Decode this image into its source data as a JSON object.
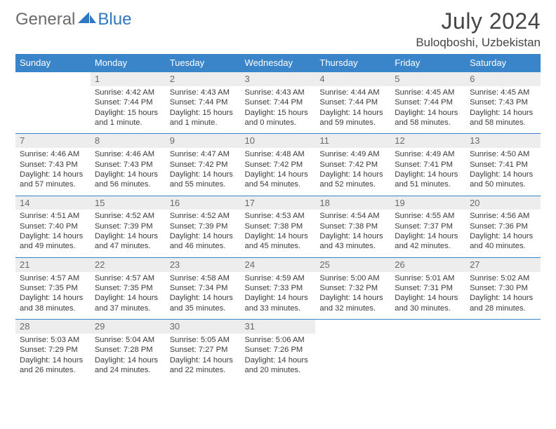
{
  "logo": {
    "general": "General",
    "blue": "Blue"
  },
  "title": "July 2024",
  "location": "Buloqboshi, Uzbekistan",
  "colors": {
    "header_bg": "#3a85c9",
    "header_fg": "#ffffff",
    "daynum_bg": "#ededed",
    "daynum_fg": "#6a6a6a",
    "rule": "#3a85c9",
    "logo_gray": "#6b6b6b",
    "logo_blue": "#2f78c1",
    "text": "#3b3b3b"
  },
  "dayNames": [
    "Sunday",
    "Monday",
    "Tuesday",
    "Wednesday",
    "Thursday",
    "Friday",
    "Saturday"
  ],
  "firstDayOfWeekIndex": 1,
  "daysInMonth": 31,
  "days": [
    {
      "n": 1,
      "sunrise": "4:42 AM",
      "sunset": "7:44 PM",
      "daylight": "15 hours and 1 minute."
    },
    {
      "n": 2,
      "sunrise": "4:43 AM",
      "sunset": "7:44 PM",
      "daylight": "15 hours and 1 minute."
    },
    {
      "n": 3,
      "sunrise": "4:43 AM",
      "sunset": "7:44 PM",
      "daylight": "15 hours and 0 minutes."
    },
    {
      "n": 4,
      "sunrise": "4:44 AM",
      "sunset": "7:44 PM",
      "daylight": "14 hours and 59 minutes."
    },
    {
      "n": 5,
      "sunrise": "4:45 AM",
      "sunset": "7:44 PM",
      "daylight": "14 hours and 58 minutes."
    },
    {
      "n": 6,
      "sunrise": "4:45 AM",
      "sunset": "7:43 PM",
      "daylight": "14 hours and 58 minutes."
    },
    {
      "n": 7,
      "sunrise": "4:46 AM",
      "sunset": "7:43 PM",
      "daylight": "14 hours and 57 minutes."
    },
    {
      "n": 8,
      "sunrise": "4:46 AM",
      "sunset": "7:43 PM",
      "daylight": "14 hours and 56 minutes."
    },
    {
      "n": 9,
      "sunrise": "4:47 AM",
      "sunset": "7:42 PM",
      "daylight": "14 hours and 55 minutes."
    },
    {
      "n": 10,
      "sunrise": "4:48 AM",
      "sunset": "7:42 PM",
      "daylight": "14 hours and 54 minutes."
    },
    {
      "n": 11,
      "sunrise": "4:49 AM",
      "sunset": "7:42 PM",
      "daylight": "14 hours and 52 minutes."
    },
    {
      "n": 12,
      "sunrise": "4:49 AM",
      "sunset": "7:41 PM",
      "daylight": "14 hours and 51 minutes."
    },
    {
      "n": 13,
      "sunrise": "4:50 AM",
      "sunset": "7:41 PM",
      "daylight": "14 hours and 50 minutes."
    },
    {
      "n": 14,
      "sunrise": "4:51 AM",
      "sunset": "7:40 PM",
      "daylight": "14 hours and 49 minutes."
    },
    {
      "n": 15,
      "sunrise": "4:52 AM",
      "sunset": "7:39 PM",
      "daylight": "14 hours and 47 minutes."
    },
    {
      "n": 16,
      "sunrise": "4:52 AM",
      "sunset": "7:39 PM",
      "daylight": "14 hours and 46 minutes."
    },
    {
      "n": 17,
      "sunrise": "4:53 AM",
      "sunset": "7:38 PM",
      "daylight": "14 hours and 45 minutes."
    },
    {
      "n": 18,
      "sunrise": "4:54 AM",
      "sunset": "7:38 PM",
      "daylight": "14 hours and 43 minutes."
    },
    {
      "n": 19,
      "sunrise": "4:55 AM",
      "sunset": "7:37 PM",
      "daylight": "14 hours and 42 minutes."
    },
    {
      "n": 20,
      "sunrise": "4:56 AM",
      "sunset": "7:36 PM",
      "daylight": "14 hours and 40 minutes."
    },
    {
      "n": 21,
      "sunrise": "4:57 AM",
      "sunset": "7:35 PM",
      "daylight": "14 hours and 38 minutes."
    },
    {
      "n": 22,
      "sunrise": "4:57 AM",
      "sunset": "7:35 PM",
      "daylight": "14 hours and 37 minutes."
    },
    {
      "n": 23,
      "sunrise": "4:58 AM",
      "sunset": "7:34 PM",
      "daylight": "14 hours and 35 minutes."
    },
    {
      "n": 24,
      "sunrise": "4:59 AM",
      "sunset": "7:33 PM",
      "daylight": "14 hours and 33 minutes."
    },
    {
      "n": 25,
      "sunrise": "5:00 AM",
      "sunset": "7:32 PM",
      "daylight": "14 hours and 32 minutes."
    },
    {
      "n": 26,
      "sunrise": "5:01 AM",
      "sunset": "7:31 PM",
      "daylight": "14 hours and 30 minutes."
    },
    {
      "n": 27,
      "sunrise": "5:02 AM",
      "sunset": "7:30 PM",
      "daylight": "14 hours and 28 minutes."
    },
    {
      "n": 28,
      "sunrise": "5:03 AM",
      "sunset": "7:29 PM",
      "daylight": "14 hours and 26 minutes."
    },
    {
      "n": 29,
      "sunrise": "5:04 AM",
      "sunset": "7:28 PM",
      "daylight": "14 hours and 24 minutes."
    },
    {
      "n": 30,
      "sunrise": "5:05 AM",
      "sunset": "7:27 PM",
      "daylight": "14 hours and 22 minutes."
    },
    {
      "n": 31,
      "sunrise": "5:06 AM",
      "sunset": "7:26 PM",
      "daylight": "14 hours and 20 minutes."
    }
  ],
  "labels": {
    "sunrise": "Sunrise:",
    "sunset": "Sunset:",
    "daylight": "Daylight:"
  }
}
